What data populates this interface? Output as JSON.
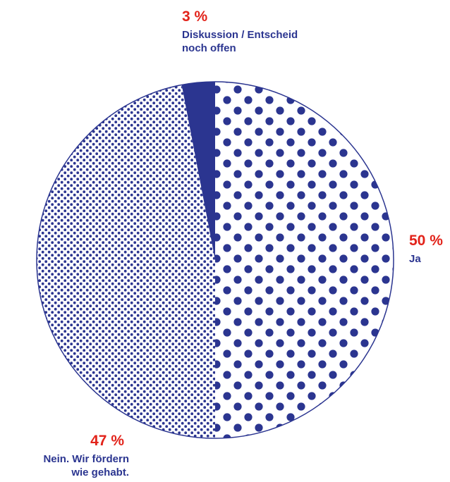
{
  "colors": {
    "slice": "#2b3590",
    "percent_text": "#e2231a",
    "label_text": "#2b3590",
    "background": "#ffffff"
  },
  "chart_data": {
    "type": "pie",
    "start_angle_deg": 0,
    "direction": "clockwise",
    "slices": [
      {
        "label": "Ja",
        "percent_label": "50 %",
        "value": 50,
        "fill": "large-dots"
      },
      {
        "label": "Nein. Wir fördern wie gehabt.",
        "label_lines": [
          "Nein. Wir fördern",
          "wie gehabt."
        ],
        "percent_label": "47 %",
        "value": 47,
        "fill": "fine-dots"
      },
      {
        "label": "Diskussion / Entscheid noch offen",
        "label_lines": [
          "Diskussion / Entscheid",
          "noch offen"
        ],
        "percent_label": "3 %",
        "value": 3,
        "fill": "solid"
      }
    ]
  }
}
